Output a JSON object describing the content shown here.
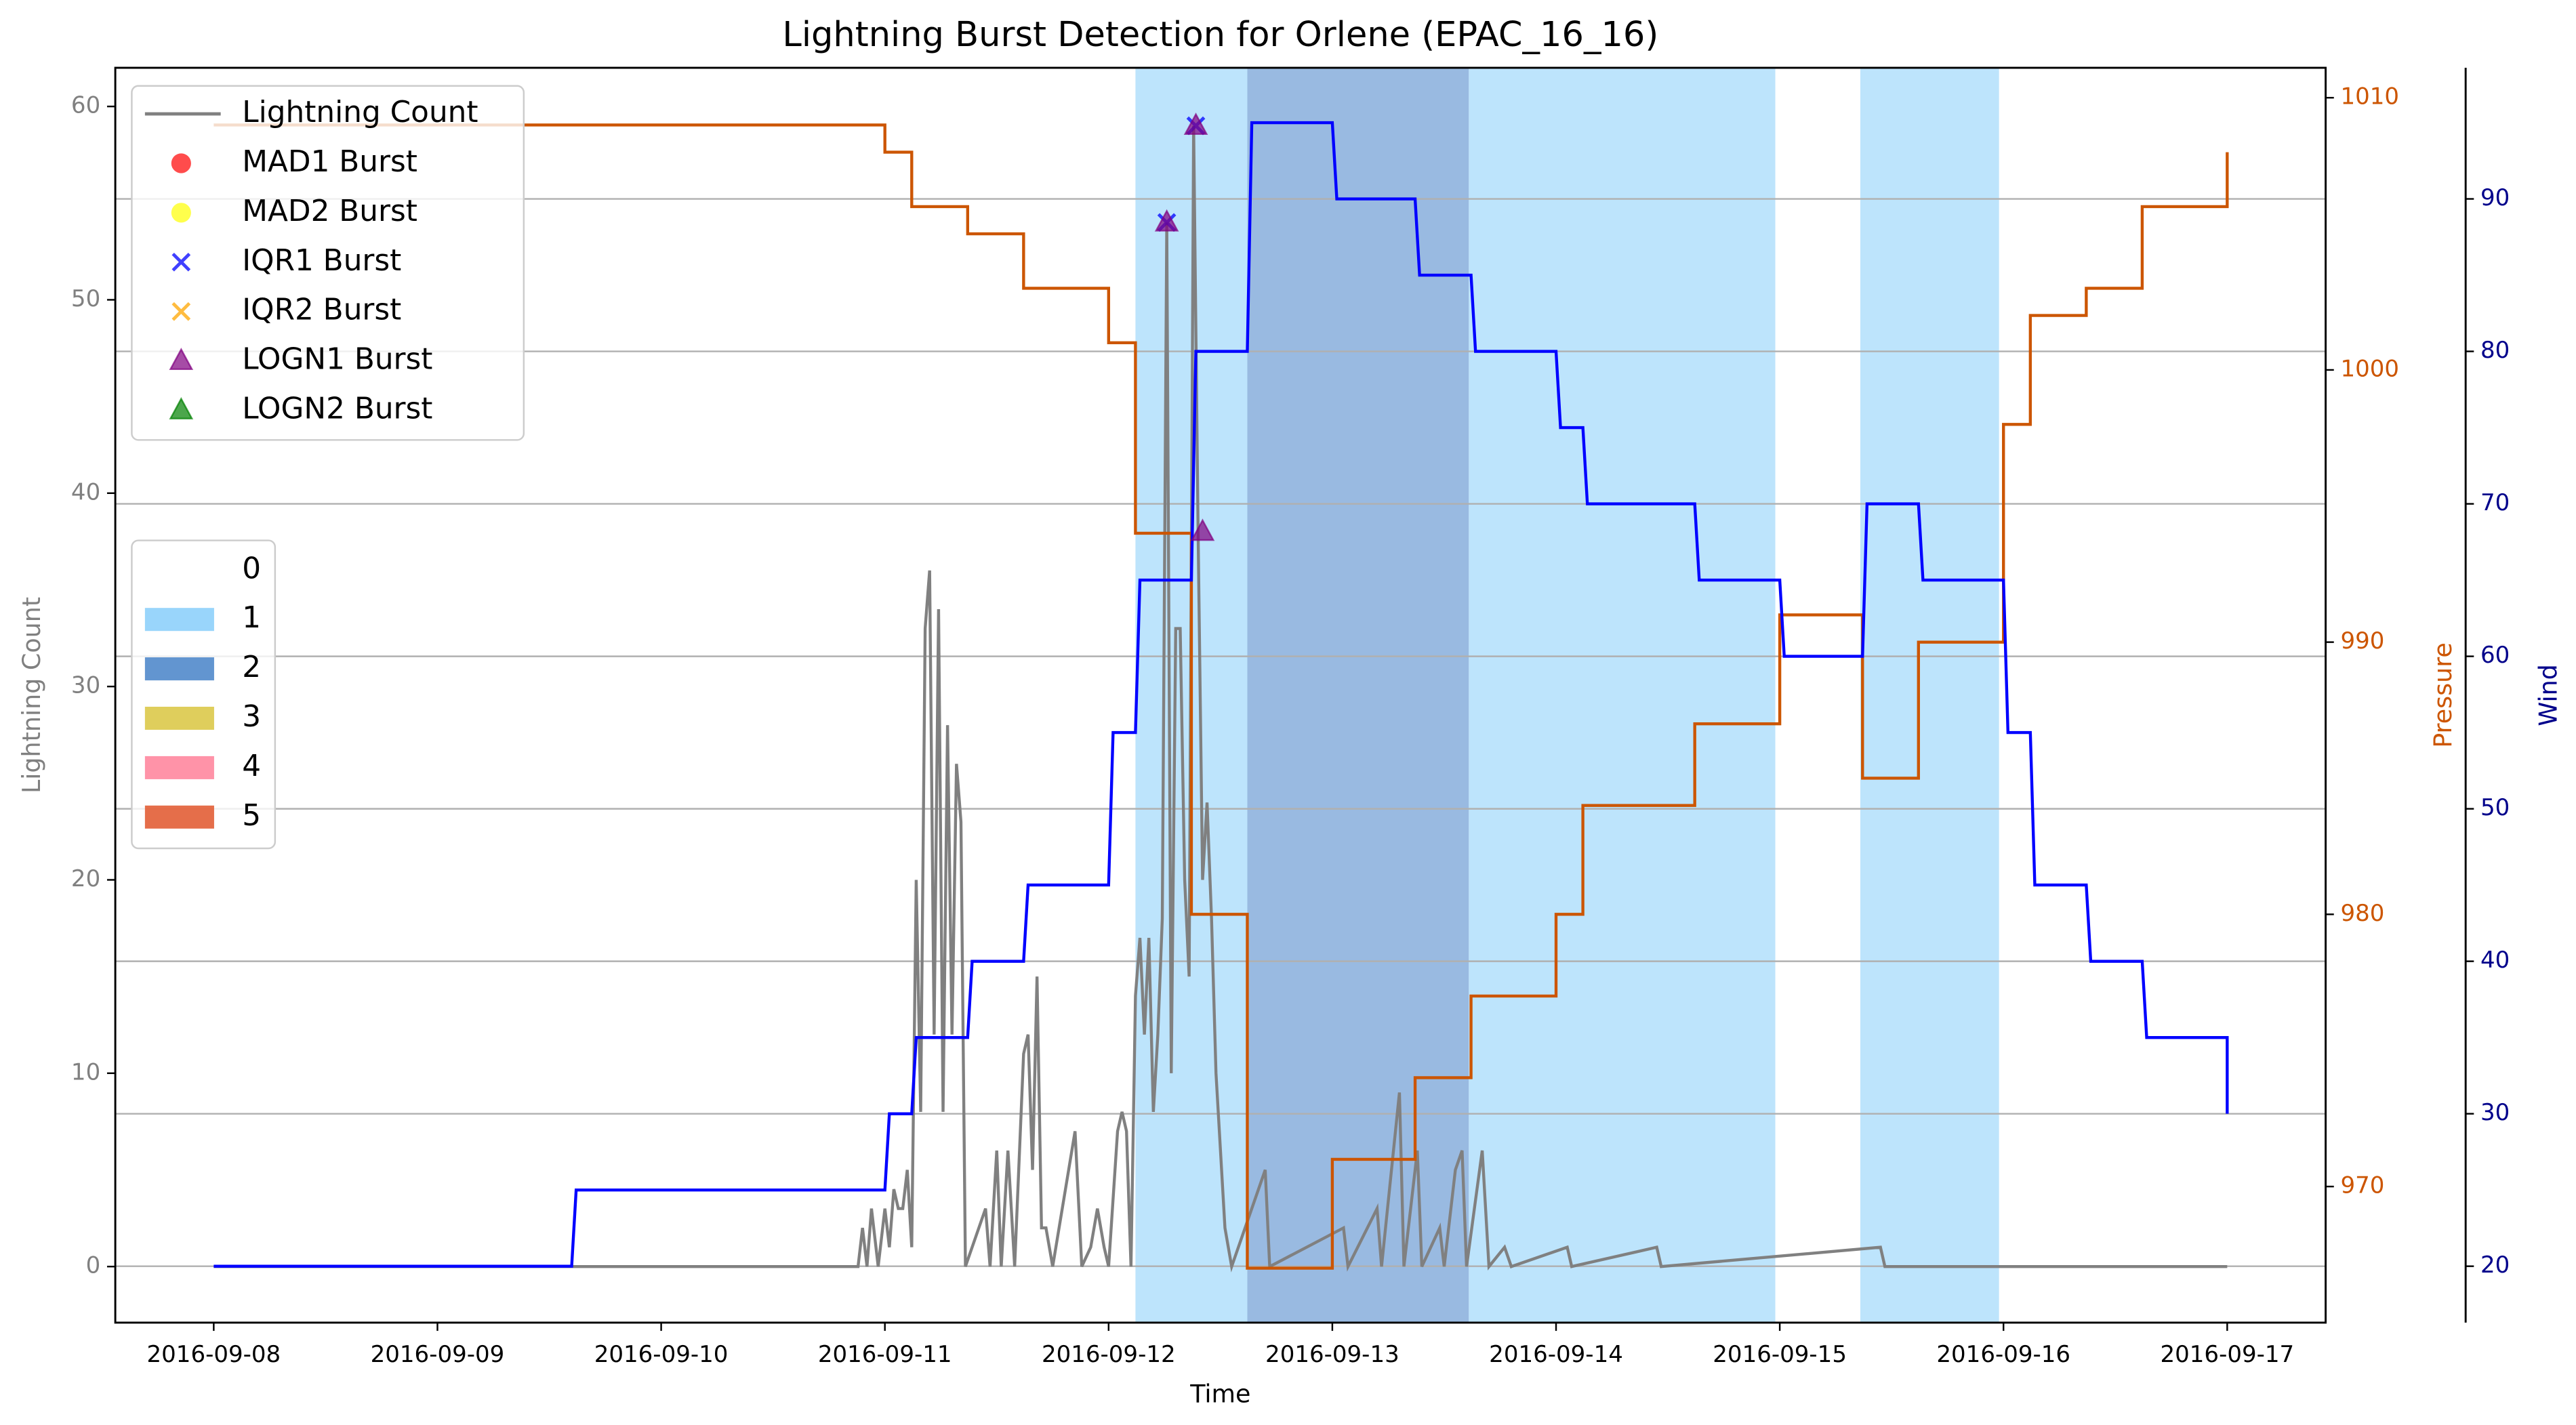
{
  "chart_data": {
    "type": "line",
    "title": "Lightning Burst Detection for Orlene (EPAC_16_16)",
    "xlabel": "Time",
    "ylabel": "Lightning Count",
    "y2label": "Pressure",
    "y3label": "Wind",
    "xlim": [
      -0.44,
      9.44
    ],
    "xticks": [
      {
        "value": 0,
        "label": "2016-09-08"
      },
      {
        "value": 1,
        "label": "2016-09-09"
      },
      {
        "value": 2,
        "label": "2016-09-10"
      },
      {
        "value": 3,
        "label": "2016-09-11"
      },
      {
        "value": 4,
        "label": "2016-09-12"
      },
      {
        "value": 5,
        "label": "2016-09-13"
      },
      {
        "value": 6,
        "label": "2016-09-14"
      },
      {
        "value": 7,
        "label": "2016-09-15"
      },
      {
        "value": 8,
        "label": "2016-09-16"
      },
      {
        "value": 9,
        "label": "2016-09-17"
      }
    ],
    "ylim": [
      -2.9,
      62.0
    ],
    "yticks": [
      0,
      10,
      20,
      30,
      40,
      50,
      60
    ],
    "y2lim": [
      965.0,
      1011.1
    ],
    "y2ticks": [
      970,
      980,
      990,
      1000,
      1010
    ],
    "y3lim": [
      16.3,
      98.6
    ],
    "y3ticks": [
      20,
      30,
      40,
      50,
      60,
      70,
      80,
      90
    ],
    "grid": "y3",
    "series": [
      {
        "name": "Lightning Count",
        "color": "#808080",
        "axis": "y",
        "x": [
          0,
          2.88,
          2.9,
          2.92,
          2.94,
          2.97,
          3.0,
          3.02,
          3.04,
          3.06,
          3.08,
          3.1,
          3.12,
          3.14,
          3.16,
          3.18,
          3.2,
          3.22,
          3.24,
          3.26,
          3.28,
          3.3,
          3.32,
          3.34,
          3.36,
          3.45,
          3.47,
          3.5,
          3.52,
          3.55,
          3.58,
          3.62,
          3.64,
          3.66,
          3.68,
          3.7,
          3.72,
          3.75,
          3.85,
          3.88,
          3.92,
          3.95,
          3.98,
          4.0,
          4.04,
          4.06,
          4.08,
          4.1,
          4.12,
          4.14,
          4.16,
          4.18,
          4.2,
          4.22,
          4.24,
          4.26,
          4.28,
          4.3,
          4.32,
          4.34,
          4.36,
          4.38,
          4.4,
          4.42,
          4.44,
          4.46,
          4.48,
          4.5,
          4.52,
          4.55,
          4.7,
          4.72,
          5.05,
          5.07,
          5.2,
          5.22,
          5.3,
          5.32,
          5.38,
          5.4,
          5.48,
          5.5,
          5.55,
          5.58,
          5.6,
          5.67,
          5.7,
          5.77,
          5.8,
          6.05,
          6.07,
          6.45,
          6.47,
          7.45,
          7.47,
          9.0
        ],
        "values": [
          0,
          0,
          2,
          0,
          3,
          0,
          3,
          1,
          4,
          3,
          3,
          5,
          1,
          20,
          8,
          33,
          36,
          12,
          34,
          8,
          28,
          12,
          26,
          23,
          0,
          3,
          0,
          6,
          0,
          6,
          0,
          11,
          12,
          5,
          15,
          2,
          2,
          0,
          7,
          0,
          1,
          3,
          1,
          0,
          7,
          8,
          7,
          0,
          14,
          17,
          12,
          17,
          8,
          12,
          18,
          54,
          10,
          33,
          33,
          20,
          15,
          59,
          38,
          20,
          24,
          18,
          10,
          6,
          2,
          0,
          5,
          0,
          2,
          0,
          3,
          0,
          9,
          0,
          6,
          0,
          2,
          0,
          5,
          6,
          0,
          6,
          0,
          1,
          0,
          1,
          0,
          1,
          0,
          1,
          0,
          0
        ]
      },
      {
        "color": "#cc5500",
        "axis": "y2",
        "x": [
          0,
          3.0,
          3.0,
          3.12,
          3.12,
          3.37,
          3.37,
          3.62,
          3.62,
          4.0,
          4.0,
          4.12,
          4.12,
          4.37,
          4.37,
          4.62,
          4.62,
          5.0,
          5.0,
          5.37,
          5.37,
          5.62,
          5.62,
          6.0,
          6.0,
          6.12,
          6.12,
          6.62,
          6.62,
          7.0,
          7.0,
          7.37,
          7.37,
          7.62,
          7.62,
          8.0,
          8.0,
          8.12,
          8.12,
          8.37,
          8.37,
          8.62,
          8.62,
          9.0,
          9.0
        ],
        "values": [
          1009,
          1009,
          1008,
          1008,
          1006,
          1006,
          1005,
          1005,
          1003,
          1003,
          1001,
          1001,
          994,
          994,
          980,
          980,
          967,
          967,
          971,
          971,
          974,
          974,
          977,
          977,
          980,
          980,
          984,
          984,
          987,
          987,
          991,
          991,
          985,
          985,
          990,
          990,
          998,
          998,
          1002,
          1002,
          1003,
          1003,
          1006,
          1006,
          1008
        ]
      },
      {
        "color": "#0000ff",
        "axis": "y3",
        "x": [
          0,
          1.6,
          1.62,
          3.0,
          3.02,
          3.12,
          3.14,
          3.37,
          3.39,
          3.62,
          3.64,
          4.0,
          4.02,
          4.12,
          4.14,
          4.37,
          4.39,
          4.62,
          4.64,
          5.0,
          5.02,
          5.37,
          5.39,
          5.62,
          5.64,
          6.0,
          6.02,
          6.12,
          6.14,
          6.62,
          6.64,
          7.0,
          7.02,
          7.37,
          7.39,
          7.62,
          7.64,
          8.0,
          8.02,
          8.12,
          8.14,
          8.37,
          8.39,
          8.62,
          8.64,
          9.0,
          9.0
        ],
        "values": [
          20,
          20,
          25,
          25,
          30,
          30,
          35,
          35,
          40,
          40,
          45,
          45,
          55,
          55,
          65,
          65,
          80,
          80,
          95,
          95,
          90,
          90,
          85,
          85,
          80,
          80,
          75,
          75,
          70,
          70,
          65,
          65,
          60,
          60,
          70,
          70,
          65,
          65,
          55,
          55,
          45,
          45,
          40,
          40,
          35,
          35,
          30
        ]
      }
    ],
    "bursts": [
      {
        "name": "MAD1 Burst",
        "color": "#ff0000",
        "marker": "circle",
        "x": [],
        "values": []
      },
      {
        "name": "MAD2 Burst",
        "color": "#ffff00",
        "marker": "circle",
        "x": [],
        "values": []
      },
      {
        "name": "IQR1 Burst",
        "color": "#0000ff",
        "marker": "x",
        "x": [
          4.26,
          4.39
        ],
        "values": [
          54,
          59
        ]
      },
      {
        "name": "IQR2 Burst",
        "color": "#ffa500",
        "marker": "x",
        "x": [],
        "values": []
      },
      {
        "name": "LOGN1 Burst",
        "color": "#800080",
        "marker": "triangle",
        "x": [
          4.26,
          4.39,
          4.42
        ],
        "values": [
          54,
          59,
          38
        ]
      },
      {
        "name": "LOGN2 Burst",
        "color": "#008000",
        "marker": "triangle",
        "x": [],
        "values": []
      }
    ],
    "category_labels": [
      "0",
      "1",
      "2",
      "3",
      "4",
      "5"
    ],
    "category_colors": [
      "#ffffff",
      "#87cefa",
      "#4682c8",
      "#d9c640",
      "#ff8099",
      "#e0552a"
    ],
    "shading": [
      {
        "start": 4.12,
        "end": 4.62,
        "category": 1
      },
      {
        "start": 4.62,
        "end": 5.61,
        "category": 2
      },
      {
        "start": 5.61,
        "end": 6.98,
        "category": 1
      },
      {
        "start": 7.36,
        "end": 7.98,
        "category": 1
      }
    ]
  }
}
